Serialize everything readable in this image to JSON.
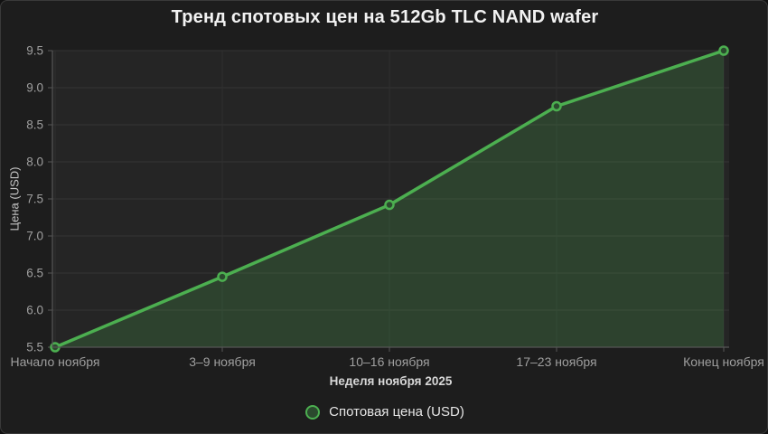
{
  "title": "Тренд спотовых цен на 512Gb TLC NAND wafer",
  "chart_data": {
    "type": "line",
    "categories": [
      "Начало ноября",
      "3–9 ноября",
      "10–16 ноября",
      "17–23 ноября",
      "Конец ноября"
    ],
    "series": [
      {
        "name": "Спотовая цена (USD)",
        "values": [
          5.5,
          6.45,
          7.42,
          8.75,
          9.5
        ]
      }
    ],
    "title": "Тренд спотовых цен на 512Gb TLC NAND wafer",
    "xlabel": "Неделя ноября 2025",
    "ylabel": "Цена (USD)",
    "ylim": [
      5.5,
      9.5
    ],
    "ytick_step": 0.5,
    "yticks": [
      "5.5",
      "6.0",
      "6.5",
      "7.0",
      "7.5",
      "8.0",
      "8.5",
      "9.0",
      "9.5"
    ],
    "grid": true,
    "area_fill": true,
    "legend_position": "bottom",
    "colors": {
      "line": "#4caf50",
      "area": "rgba(76,175,80,0.22)",
      "marker_fill": "#2b4a2e",
      "background": "#1d1d1d",
      "plot_background": "#252525",
      "gridline": "#353535",
      "axis": "#565656",
      "tick_text": "#9f9f9f"
    }
  },
  "legend": {
    "label": "Спотовая цена (USD)"
  }
}
